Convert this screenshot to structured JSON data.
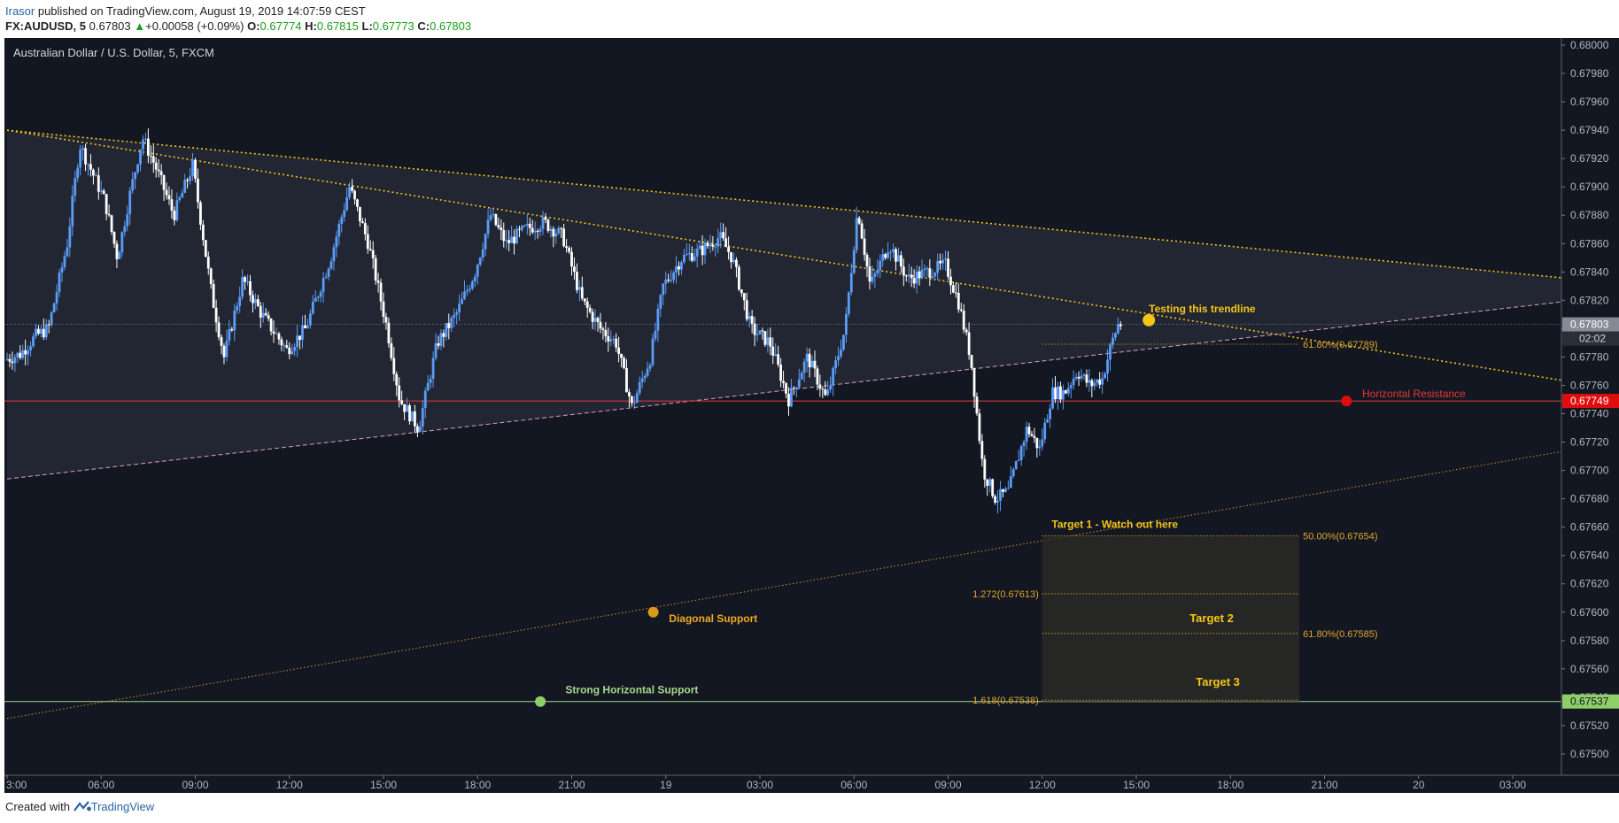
{
  "header": {
    "user": "Irasor",
    "published_text": " published on TradingView.com, August 19, 2019 14:07:59 CEST",
    "symbol": "FX:AUDUSD, 5",
    "last": "0.67803",
    "change_arrow": "▲",
    "change": "+0.00058 (+0.09%)",
    "o_label": "O:",
    "o_val": "0.67774",
    "h_label": "H:",
    "h_val": "0.67815",
    "l_label": "L:",
    "l_val": "0.67773",
    "c_label": "C:",
    "c_val": "0.67803"
  },
  "footer": {
    "created_with": "Created with",
    "brand": "TradingView"
  },
  "chart_data": {
    "type": "candlestick",
    "title": "Australian Dollar / U.S. Dollar, 5, FXCM",
    "ylim": [
      0.67485,
      0.68005
    ],
    "y_ticks": [
      "0.68000",
      "0.67980",
      "0.67960",
      "0.67940",
      "0.67920",
      "0.67900",
      "0.67880",
      "0.67860",
      "0.67840",
      "0.67820",
      "0.67800",
      "0.67780",
      "0.67760",
      "0.67740",
      "0.67720",
      "0.67700",
      "0.67680",
      "0.67660",
      "0.67640",
      "0.67620",
      "0.67600",
      "0.67580",
      "0.67560",
      "0.67540",
      "0.67520",
      "0.67500"
    ],
    "x_axis_hours_range": [
      0,
      48
    ],
    "x_ticks": [
      {
        "label": "3:00",
        "h": 0
      },
      {
        "label": "06:00",
        "h": 3
      },
      {
        "label": "09:00",
        "h": 6
      },
      {
        "label": "12:00",
        "h": 9
      },
      {
        "label": "15:00",
        "h": 12
      },
      {
        "label": "18:00",
        "h": 15
      },
      {
        "label": "21:00",
        "h": 18
      },
      {
        "label": "19",
        "h": 21
      },
      {
        "label": "03:00",
        "h": 24
      },
      {
        "label": "06:00",
        "h": 27
      },
      {
        "label": "09:00",
        "h": 30
      },
      {
        "label": "12:00",
        "h": 33
      },
      {
        "label": "15:00",
        "h": 36
      },
      {
        "label": "18:00",
        "h": 39
      },
      {
        "label": "21:00",
        "h": 42
      },
      {
        "label": "20",
        "h": 45
      },
      {
        "label": "03:00",
        "h": 48
      }
    ],
    "price_path": [
      {
        "h": 0,
        "p": 0.67778
      },
      {
        "h": 0.5,
        "p": 0.67782
      },
      {
        "h": 1,
        "p": 0.67795
      },
      {
        "h": 1.4,
        "p": 0.678
      },
      {
        "h": 2,
        "p": 0.6786
      },
      {
        "h": 2.4,
        "p": 0.6793
      },
      {
        "h": 2.8,
        "p": 0.6791
      },
      {
        "h": 3.2,
        "p": 0.6789
      },
      {
        "h": 3.6,
        "p": 0.6785
      },
      {
        "h": 4,
        "p": 0.67895
      },
      {
        "h": 4.4,
        "p": 0.67935
      },
      {
        "h": 4.8,
        "p": 0.67915
      },
      {
        "h": 5.4,
        "p": 0.6788
      },
      {
        "h": 6,
        "p": 0.67915
      },
      {
        "h": 6.6,
        "p": 0.67825
      },
      {
        "h": 7,
        "p": 0.6778
      },
      {
        "h": 7.6,
        "p": 0.67835
      },
      {
        "h": 8.2,
        "p": 0.6781
      },
      {
        "h": 9,
        "p": 0.67785
      },
      {
        "h": 9.6,
        "p": 0.678
      },
      {
        "h": 10.4,
        "p": 0.6785
      },
      {
        "h": 11,
        "p": 0.679
      },
      {
        "h": 11.6,
        "p": 0.6786
      },
      {
        "h": 12.2,
        "p": 0.678
      },
      {
        "h": 12.6,
        "p": 0.6775
      },
      {
        "h": 13.2,
        "p": 0.6773
      },
      {
        "h": 13.8,
        "p": 0.6779
      },
      {
        "h": 14.4,
        "p": 0.6781
      },
      {
        "h": 15,
        "p": 0.6784
      },
      {
        "h": 15.5,
        "p": 0.6788
      },
      {
        "h": 16,
        "p": 0.6786
      },
      {
        "h": 16.6,
        "p": 0.6787
      },
      {
        "h": 17.2,
        "p": 0.67875
      },
      {
        "h": 17.8,
        "p": 0.67865
      },
      {
        "h": 18.4,
        "p": 0.6782
      },
      {
        "h": 19,
        "p": 0.678
      },
      {
        "h": 19.5,
        "p": 0.6779
      },
      {
        "h": 20,
        "p": 0.67745
      },
      {
        "h": 20.6,
        "p": 0.6778
      },
      {
        "h": 21,
        "p": 0.6783
      },
      {
        "h": 21.6,
        "p": 0.6785
      },
      {
        "h": 22.2,
        "p": 0.67855
      },
      {
        "h": 22.8,
        "p": 0.67865
      },
      {
        "h": 23.2,
        "p": 0.6785
      },
      {
        "h": 23.8,
        "p": 0.678
      },
      {
        "h": 24.4,
        "p": 0.6779
      },
      {
        "h": 25,
        "p": 0.6775
      },
      {
        "h": 25.6,
        "p": 0.6778
      },
      {
        "h": 26.2,
        "p": 0.6775
      },
      {
        "h": 26.8,
        "p": 0.678
      },
      {
        "h": 27.2,
        "p": 0.67885
      },
      {
        "h": 27.6,
        "p": 0.6783
      },
      {
        "h": 28.2,
        "p": 0.6786
      },
      {
        "h": 28.8,
        "p": 0.67835
      },
      {
        "h": 29.4,
        "p": 0.6784
      },
      {
        "h": 30,
        "p": 0.67845
      },
      {
        "h": 30.4,
        "p": 0.6782
      },
      {
        "h": 30.8,
        "p": 0.6778
      },
      {
        "h": 31.2,
        "p": 0.677
      },
      {
        "h": 31.6,
        "p": 0.6768
      },
      {
        "h": 32,
        "p": 0.67685
      },
      {
        "h": 32.6,
        "p": 0.6773
      },
      {
        "h": 33,
        "p": 0.67715
      },
      {
        "h": 33.4,
        "p": 0.67755
      },
      {
        "h": 33.8,
        "p": 0.67755
      },
      {
        "h": 34.2,
        "p": 0.6777
      },
      {
        "h": 34.6,
        "p": 0.6776
      },
      {
        "h": 35,
        "p": 0.67765
      },
      {
        "h": 35.3,
        "p": 0.6779
      },
      {
        "h": 35.5,
        "p": 0.67803
      }
    ],
    "current_price": "0.67803",
    "countdown": "02:02",
    "horizontal_resistance_price": "0.67749",
    "strong_support_price": "0.67537",
    "triangle": {
      "upper": [
        {
          "h": 0,
          "p": 0.6794
        },
        {
          "h": 50,
          "p": 0.67835
        }
      ],
      "lower": [
        {
          "h": 0,
          "p": 0.67694
        },
        {
          "h": 50,
          "p": 0.6782
        }
      ]
    },
    "descending_trendline": [
      {
        "h": 0,
        "p": 0.6794
      },
      {
        "h": 50,
        "p": 0.67762
      }
    ],
    "diagonal_support": [
      {
        "h": 0,
        "p": 0.67525
      },
      {
        "h": 50,
        "p": 0.67715
      }
    ],
    "fib_box": {
      "h_start": 33,
      "h_end": 41.2,
      "p_top": 0.67654,
      "p_bottom": 0.67537
    },
    "annotations": {
      "testing_trendline": "Testing this trendline",
      "fib_618_top": "61.80%(0.67789)",
      "horizontal_resistance": "Horizontal Resistance",
      "target1": "Target 1 - Watch out here",
      "fib_50": "50.00%(0.67654)",
      "fib_1272": "1.272(0.67613)",
      "target2": "Target 2",
      "fib_618_bottom": "61.80%(0.67585)",
      "target3": "Target 3",
      "fib_1618": "1.618(0.67538)",
      "diagonal_support": "Diagonal Support",
      "strong_support": "Strong Horizontal Support"
    },
    "colors": {
      "background": "#131722",
      "candle_up": "#5b9cf6",
      "candle_down": "#ffffff",
      "trendline": "#f5c518",
      "resistance": "#e53935",
      "support": "#a5d68a",
      "fib": "#e0a52d",
      "triangle_fill": "#2a2e3b"
    }
  }
}
